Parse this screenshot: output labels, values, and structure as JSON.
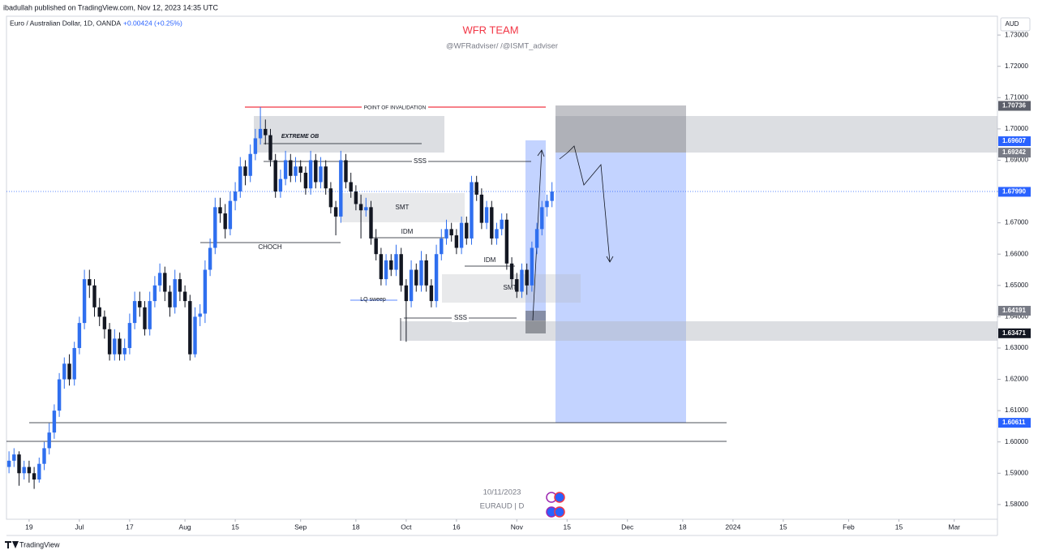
{
  "header": {
    "published": "ibadullah published on TradingView.com, Nov 12, 2023 14:35 UTC",
    "symbol": "Euro / Australian Dollar, 1D, OANDA",
    "change": "+0.00424 (+0.25%)",
    "currency": "AUD",
    "brand": "TradingView"
  },
  "watermark": {
    "title": "WFR TEAM",
    "handles": "@WFRadviser/ /@ISMT_adviser",
    "date": "10/11/2023",
    "symbol": "EURAUD | D"
  },
  "annotations": {
    "invalidation": "POINT OF INVALIDATION",
    "extreme_ob": "EXTREME OB",
    "sss_top": "SSS",
    "smt_top": "SMT",
    "choch": "CHOCH",
    "idm_left": "IDM",
    "idm_right": "IDM",
    "smt_bottom": "SMT",
    "lq_sweep": "LQ sweep",
    "sss_bottom": "SSS"
  },
  "chart_data": {
    "type": "candlestick",
    "up_color": "#2f6fef",
    "down_color": "#131722",
    "xlim": [
      -0.5,
      196.6
    ],
    "ylim": [
      1.5753,
      1.736
    ],
    "xticks": [
      {
        "value": 4,
        "label": "19"
      },
      {
        "value": 14,
        "label": "Jul"
      },
      {
        "value": 24,
        "label": "17"
      },
      {
        "value": 35,
        "label": "Aug"
      },
      {
        "value": 45,
        "label": "15"
      },
      {
        "value": 58,
        "label": "Sep"
      },
      {
        "value": 69,
        "label": "18"
      },
      {
        "value": 79,
        "label": "Oct"
      },
      {
        "value": 89,
        "label": "16"
      },
      {
        "value": 101,
        "label": "Nov"
      },
      {
        "value": 111,
        "label": "15"
      },
      {
        "value": 123,
        "label": "Dec"
      },
      {
        "value": 134,
        "label": "18"
      },
      {
        "value": 144,
        "label": "2024"
      },
      {
        "value": 154,
        "label": "15"
      },
      {
        "value": 167,
        "label": "Feb"
      },
      {
        "value": 177,
        "label": "15"
      },
      {
        "value": 188,
        "label": "Mar"
      }
    ],
    "yticks": [
      {
        "value": 1.58,
        "label": "1.58000"
      },
      {
        "value": 1.59,
        "label": "1.59000"
      },
      {
        "value": 1.6,
        "label": "1.60000"
      },
      {
        "value": 1.61,
        "label": "1.61000"
      },
      {
        "value": 1.62,
        "label": "1.62000"
      },
      {
        "value": 1.63,
        "label": "1.63000"
      },
      {
        "value": 1.64,
        "label": "1.64000"
      },
      {
        "value": 1.65,
        "label": "1.65000"
      },
      {
        "value": 1.66,
        "label": "1.66000"
      },
      {
        "value": 1.67,
        "label": "1.67000"
      },
      {
        "value": 1.68,
        "label": "1.68000"
      },
      {
        "value": 1.69,
        "label": "1.69000"
      },
      {
        "value": 1.7,
        "label": "1.70000"
      },
      {
        "value": 1.71,
        "label": "1.71000"
      },
      {
        "value": 1.72,
        "label": "1.72000"
      },
      {
        "value": 1.73,
        "label": "1.73000"
      }
    ],
    "price_tags": [
      {
        "value": 1.70736,
        "label": "1.70736",
        "color": "#5d606b"
      },
      {
        "value": 1.69607,
        "label": "1.69607",
        "color": "#2962ff"
      },
      {
        "value": 1.69242,
        "label": "1.69242",
        "color": "#787b86"
      },
      {
        "value": 1.6799,
        "label": "1.67990",
        "color": "#2962ff"
      },
      {
        "value": 1.64191,
        "label": "1.64191",
        "color": "#787b86"
      },
      {
        "value": 1.63471,
        "label": "1.63471",
        "color": "#131722"
      },
      {
        "value": 1.60611,
        "label": "1.60611",
        "color": "#2962ff"
      }
    ],
    "candles": [
      [
        1.592,
        1.597,
        1.59,
        1.594
      ],
      [
        1.594,
        1.598,
        1.592,
        1.596
      ],
      [
        1.596,
        1.597,
        1.586,
        1.59
      ],
      [
        1.59,
        1.594,
        1.588,
        1.592
      ],
      [
        1.592,
        1.594,
        1.587,
        1.59
      ],
      [
        1.59,
        1.592,
        1.585,
        1.588
      ],
      [
        1.588,
        1.595,
        1.587,
        1.593
      ],
      [
        1.593,
        1.6,
        1.591,
        1.598
      ],
      [
        1.598,
        1.606,
        1.596,
        1.603
      ],
      [
        1.603,
        1.612,
        1.601,
        1.61
      ],
      [
        1.61,
        1.622,
        1.608,
        1.62
      ],
      [
        1.62,
        1.627,
        1.617,
        1.625
      ],
      [
        1.625,
        1.628,
        1.618,
        1.62
      ],
      [
        1.62,
        1.632,
        1.618,
        1.63
      ],
      [
        1.63,
        1.64,
        1.628,
        1.638
      ],
      [
        1.638,
        1.655,
        1.636,
        1.652
      ],
      [
        1.652,
        1.655,
        1.646,
        1.65
      ],
      [
        1.65,
        1.652,
        1.64,
        1.643
      ],
      [
        1.643,
        1.646,
        1.637,
        1.64
      ],
      [
        1.64,
        1.642,
        1.633,
        1.636
      ],
      [
        1.636,
        1.638,
        1.626,
        1.628
      ],
      [
        1.628,
        1.636,
        1.626,
        1.633
      ],
      [
        1.633,
        1.635,
        1.626,
        1.628
      ],
      [
        1.628,
        1.633,
        1.626,
        1.63
      ],
      [
        1.63,
        1.641,
        1.628,
        1.638
      ],
      [
        1.638,
        1.648,
        1.636,
        1.645
      ],
      [
        1.645,
        1.648,
        1.64,
        1.643
      ],
      [
        1.643,
        1.645,
        1.634,
        1.636
      ],
      [
        1.636,
        1.648,
        1.634,
        1.645
      ],
      [
        1.645,
        1.653,
        1.643,
        1.65
      ],
      [
        1.65,
        1.657,
        1.648,
        1.654
      ],
      [
        1.654,
        1.656,
        1.645,
        1.648
      ],
      [
        1.648,
        1.65,
        1.64,
        1.643
      ],
      [
        1.643,
        1.655,
        1.641,
        1.652
      ],
      [
        1.652,
        1.654,
        1.645,
        1.648
      ],
      [
        1.648,
        1.65,
        1.643,
        1.645
      ],
      [
        1.645,
        1.647,
        1.626,
        1.628
      ],
      [
        1.628,
        1.643,
        1.627,
        1.64
      ],
      [
        1.64,
        1.644,
        1.637,
        1.641
      ],
      [
        1.641,
        1.658,
        1.638,
        1.655
      ],
      [
        1.655,
        1.665,
        1.653,
        1.662
      ],
      [
        1.662,
        1.678,
        1.66,
        1.675
      ],
      [
        1.675,
        1.678,
        1.67,
        1.673
      ],
      [
        1.673,
        1.676,
        1.665,
        1.668
      ],
      [
        1.668,
        1.68,
        1.666,
        1.677
      ],
      [
        1.677,
        1.683,
        1.674,
        1.68
      ],
      [
        1.68,
        1.691,
        1.678,
        1.688
      ],
      [
        1.688,
        1.69,
        1.682,
        1.685
      ],
      [
        1.685,
        1.695,
        1.683,
        1.692
      ],
      [
        1.692,
        1.7,
        1.69,
        1.697
      ],
      [
        1.697,
        1.707,
        1.695,
        1.7
      ],
      [
        1.7,
        1.703,
        1.695,
        1.698
      ],
      [
        1.698,
        1.7,
        1.688,
        1.69
      ],
      [
        1.69,
        1.692,
        1.678,
        1.68
      ],
      [
        1.68,
        1.687,
        1.678,
        1.684
      ],
      [
        1.684,
        1.693,
        1.682,
        1.69
      ],
      [
        1.69,
        1.692,
        1.683,
        1.685
      ],
      [
        1.685,
        1.691,
        1.683,
        1.688
      ],
      [
        1.688,
        1.69,
        1.683,
        1.686
      ],
      [
        1.686,
        1.688,
        1.679,
        1.681
      ],
      [
        1.681,
        1.693,
        1.679,
        1.69
      ],
      [
        1.69,
        1.692,
        1.681,
        1.683
      ],
      [
        1.683,
        1.691,
        1.681,
        1.688
      ],
      [
        1.688,
        1.69,
        1.679,
        1.681
      ],
      [
        1.681,
        1.683,
        1.673,
        1.675
      ],
      [
        1.675,
        1.677,
        1.666,
        1.672
      ],
      [
        1.672,
        1.693,
        1.67,
        1.69
      ],
      [
        1.69,
        1.692,
        1.681,
        1.683
      ],
      [
        1.683,
        1.686,
        1.678,
        1.68
      ],
      [
        1.68,
        1.682,
        1.674,
        1.676
      ],
      [
        1.676,
        1.679,
        1.665,
        1.674
      ],
      [
        1.674,
        1.678,
        1.672,
        1.675
      ],
      [
        1.675,
        1.677,
        1.663,
        1.665
      ],
      [
        1.665,
        1.668,
        1.658,
        1.66
      ],
      [
        1.66,
        1.662,
        1.65,
        1.652
      ],
      [
        1.652,
        1.66,
        1.65,
        1.658
      ],
      [
        1.658,
        1.66,
        1.653,
        1.655
      ],
      [
        1.655,
        1.663,
        1.653,
        1.66
      ],
      [
        1.66,
        1.662,
        1.648,
        1.65
      ],
      [
        1.65,
        1.652,
        1.632,
        1.645
      ],
      [
        1.645,
        1.658,
        1.643,
        1.655
      ],
      [
        1.655,
        1.657,
        1.648,
        1.65
      ],
      [
        1.65,
        1.661,
        1.648,
        1.658
      ],
      [
        1.658,
        1.66,
        1.648,
        1.65
      ],
      [
        1.65,
        1.652,
        1.643,
        1.645
      ],
      [
        1.645,
        1.663,
        1.643,
        1.66
      ],
      [
        1.66,
        1.668,
        1.658,
        1.665
      ],
      [
        1.665,
        1.671,
        1.663,
        1.668
      ],
      [
        1.668,
        1.67,
        1.664,
        1.666
      ],
      [
        1.666,
        1.668,
        1.66,
        1.662
      ],
      [
        1.662,
        1.672,
        1.66,
        1.67
      ],
      [
        1.67,
        1.672,
        1.663,
        1.665
      ],
      [
        1.665,
        1.685,
        1.663,
        1.683
      ],
      [
        1.683,
        1.685,
        1.677,
        1.679
      ],
      [
        1.679,
        1.681,
        1.668,
        1.67
      ],
      [
        1.67,
        1.677,
        1.668,
        1.675
      ],
      [
        1.675,
        1.677,
        1.663,
        1.665
      ],
      [
        1.665,
        1.67,
        1.663,
        1.668
      ],
      [
        1.668,
        1.673,
        1.666,
        1.671
      ],
      [
        1.671,
        1.673,
        1.655,
        1.657
      ],
      [
        1.657,
        1.659,
        1.65,
        1.652
      ],
      [
        1.652,
        1.654,
        1.646,
        1.648
      ],
      [
        1.648,
        1.657,
        1.646,
        1.655
      ],
      [
        1.655,
        1.657,
        1.647,
        1.65
      ],
      [
        1.65,
        1.664,
        1.648,
        1.662
      ],
      [
        1.662,
        1.67,
        1.66,
        1.668
      ],
      [
        1.668,
        1.677,
        1.666,
        1.675
      ],
      [
        1.675,
        1.679,
        1.672,
        1.677
      ],
      [
        1.677,
        1.683,
        1.675,
        1.68
      ]
    ]
  }
}
